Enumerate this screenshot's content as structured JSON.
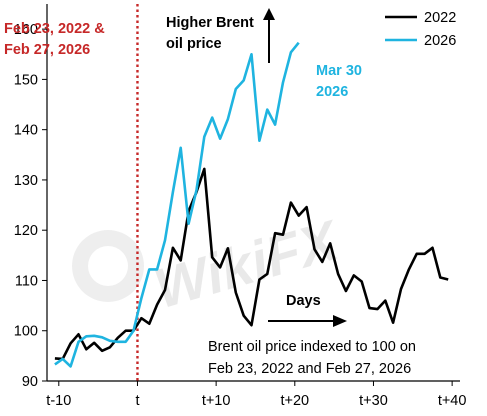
{
  "chart_data": {
    "type": "line",
    "ylim": [
      90,
      165
    ],
    "xlim": [
      -11.5,
      41
    ],
    "yticks": [
      90,
      100,
      110,
      120,
      130,
      140,
      150,
      160
    ],
    "xticks": [
      {
        "value": -10,
        "label": "t-10"
      },
      {
        "value": 0,
        "label": "t"
      },
      {
        "value": 10,
        "label": "t+10"
      },
      {
        "value": 20,
        "label": "t+20"
      },
      {
        "value": 30,
        "label": "t+30"
      },
      {
        "value": 40,
        "label": "t+40"
      }
    ],
    "grid": false,
    "legend": "top-right",
    "series": [
      {
        "name": "2022",
        "color": "#000000",
        "points": [
          [
            -10.5,
            94.5
          ],
          [
            -9.5,
            94.4
          ],
          [
            -8.5,
            97.5
          ],
          [
            -7.5,
            99.3
          ],
          [
            -6.5,
            96.3
          ],
          [
            -5.5,
            97.6
          ],
          [
            -4.5,
            96.0
          ],
          [
            -3.5,
            96.7
          ],
          [
            -2.5,
            98.6
          ],
          [
            -1.5,
            100.0
          ],
          [
            -0.5,
            100.0
          ],
          [
            0.5,
            102.5
          ],
          [
            1.5,
            101.4
          ],
          [
            2.5,
            105.2
          ],
          [
            3.5,
            108.1
          ],
          [
            4.5,
            116.5
          ],
          [
            5.5,
            114.0
          ],
          [
            6.5,
            123.8
          ],
          [
            7.5,
            127.6
          ],
          [
            8.5,
            132.2
          ],
          [
            9.5,
            114.6
          ],
          [
            10.5,
            112.6
          ],
          [
            11.5,
            116.4
          ],
          [
            12.5,
            107.6
          ],
          [
            13.5,
            103.0
          ],
          [
            14.5,
            101.1
          ],
          [
            15.5,
            110.2
          ],
          [
            16.5,
            111.3
          ],
          [
            17.5,
            119.4
          ],
          [
            18.5,
            119.1
          ],
          [
            19.5,
            125.5
          ],
          [
            20.5,
            122.9
          ],
          [
            21.5,
            124.6
          ],
          [
            22.5,
            116.2
          ],
          [
            23.5,
            113.7
          ],
          [
            24.5,
            117.4
          ],
          [
            25.5,
            111.3
          ],
          [
            26.5,
            107.9
          ],
          [
            27.5,
            111.0
          ],
          [
            28.5,
            109.8
          ],
          [
            29.5,
            104.5
          ],
          [
            30.5,
            104.3
          ],
          [
            31.5,
            106.0
          ],
          [
            32.5,
            101.6
          ],
          [
            33.5,
            108.3
          ],
          [
            34.5,
            112.2
          ],
          [
            35.5,
            115.3
          ],
          [
            36.5,
            115.3
          ],
          [
            37.5,
            116.5
          ],
          [
            38.5,
            110.6
          ],
          [
            39.5,
            110.2
          ]
        ]
      },
      {
        "name": "2026",
        "color": "#1fb4e0",
        "points": [
          [
            -10.5,
            93.3
          ],
          [
            -9.5,
            94.4
          ],
          [
            -8.5,
            92.9
          ],
          [
            -7.5,
            97.8
          ],
          [
            -6.5,
            98.9
          ],
          [
            -5.5,
            99.0
          ],
          [
            -4.5,
            98.7
          ],
          [
            -3.5,
            98.0
          ],
          [
            -2.5,
            97.8
          ],
          [
            -1.5,
            97.8
          ],
          [
            -0.5,
            100.0
          ],
          [
            0.5,
            106.5
          ],
          [
            1.5,
            112.2
          ],
          [
            2.5,
            112.2
          ],
          [
            3.5,
            118.0
          ],
          [
            4.5,
            127.6
          ],
          [
            5.5,
            136.4
          ],
          [
            6.5,
            121.3
          ],
          [
            7.5,
            128.0
          ],
          [
            8.5,
            138.6
          ],
          [
            9.5,
            142.4
          ],
          [
            10.5,
            138.2
          ],
          [
            11.5,
            142.1
          ],
          [
            12.5,
            148.1
          ],
          [
            13.5,
            149.8
          ],
          [
            14.5,
            155.0
          ],
          [
            15.5,
            137.8
          ],
          [
            16.5,
            144.0
          ],
          [
            17.5,
            141.0
          ],
          [
            18.5,
            149.4
          ],
          [
            19.5,
            155.4
          ],
          [
            20.5,
            157.3
          ]
        ]
      }
    ],
    "annotations": {
      "event_label": "Feb 23, 2022 & Feb 27, 2026",
      "higher_label": "Higher Brent oil price",
      "endpoint_label": "Mar 30 2026",
      "days_label": "Days",
      "note": "Brent oil price indexed to 100 on Feb 23, 2022 and Feb 27, 2026"
    },
    "colors": {
      "event_line": "#c62828",
      "event_text": "#c62828"
    }
  },
  "watermark": {
    "text": "WikiFX",
    "color": "#e3e3e3"
  }
}
